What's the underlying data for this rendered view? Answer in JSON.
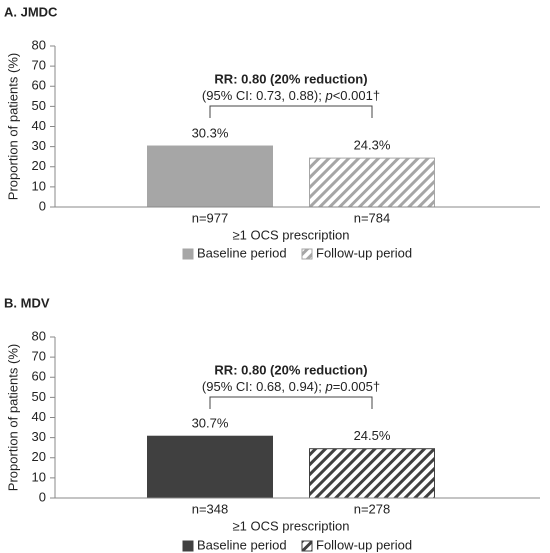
{
  "chart_data": [
    {
      "type": "bar",
      "title": "A. JMDC",
      "y_label": "Proportion of patients (%)",
      "categories": [
        "≥1 OCS prescription"
      ],
      "n_labels": [
        "n=977",
        "n=784"
      ],
      "series": [
        {
          "name": "Baseline period",
          "color": "#a6a6a6",
          "pattern": "solid",
          "values": [
            30.3
          ],
          "value_labels": [
            "30.3%"
          ]
        },
        {
          "name": "Follow-up period",
          "color": "#a6a6a6",
          "pattern": "hatch",
          "values": [
            24.3
          ],
          "value_labels": [
            "24.3%"
          ]
        }
      ],
      "annotation": {
        "heading": "RR: 0.80 (20% reduction)",
        "detail": [
          "(95% CI: 0.73, 0.88); ",
          "p",
          "<0.001†"
        ]
      },
      "ylim": [
        0,
        80
      ],
      "yticks": [
        0,
        10,
        20,
        30,
        40,
        50,
        60,
        70,
        80
      ],
      "legend": "bottom"
    },
    {
      "type": "bar",
      "title": "B. MDV",
      "y_label": "Proportion of patients (%)",
      "categories": [
        "≥1 OCS prescription"
      ],
      "n_labels": [
        "n=348",
        "n=278"
      ],
      "series": [
        {
          "name": "Baseline period",
          "color": "#404040",
          "pattern": "solid",
          "values": [
            30.7
          ],
          "value_labels": [
            "30.7%"
          ]
        },
        {
          "name": "Follow-up period",
          "color": "#404040",
          "pattern": "hatch",
          "values": [
            24.5
          ],
          "value_labels": [
            "24.5%"
          ]
        }
      ],
      "annotation": {
        "heading": "RR: 0.80 (20% reduction)",
        "detail": [
          "(95% CI: 0.68, 0.94); ",
          "p",
          "=0.005†"
        ]
      },
      "ylim": [
        0,
        80
      ],
      "yticks": [
        0,
        10,
        20,
        30,
        40,
        50,
        60,
        70,
        80
      ],
      "legend": "bottom"
    }
  ]
}
